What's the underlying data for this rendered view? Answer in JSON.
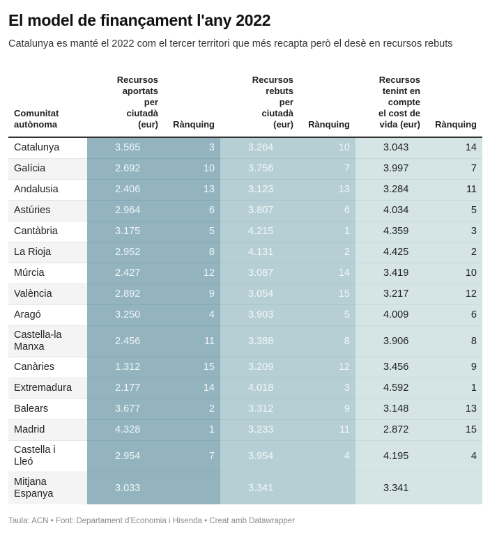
{
  "title": "El model de finançament l'any 2022",
  "subtitle": "Catalunya es manté el 2022 com el tercer territori que més recapta però el desè en recursos rebuts",
  "table": {
    "headers": [
      "Comunitat autònoma",
      "Recursos aportats per ciutadà (eur)",
      "Rànquing",
      "Recursos rebuts per ciutadà (eur)",
      "Rànquing",
      "Recursos tenint en compte el cost de vida (eur)",
      "Rànquing"
    ],
    "header_lines": [
      [
        "Comunitat",
        "autònoma"
      ],
      [
        "Recursos",
        "aportats",
        "per",
        "ciutadà",
        "(eur)"
      ],
      [
        "Rànquing"
      ],
      [
        "Recursos",
        "rebuts",
        "per",
        "ciutadà",
        "(eur)"
      ],
      [
        "Rànquing"
      ],
      [
        "Recursos",
        "tenint en",
        "compte",
        "el cost de",
        "vida (eur)"
      ],
      [
        "Rànquing"
      ]
    ],
    "rows": [
      {
        "name": "Catalunya",
        "aportats": "3.565",
        "rank_aportats": "3",
        "rebuts": "3.264",
        "rank_rebuts": "10",
        "cost_vida": "3.043",
        "rank_cost_vida": "14"
      },
      {
        "name": "Galícia",
        "aportats": "2.692",
        "rank_aportats": "10",
        "rebuts": "3.756",
        "rank_rebuts": "7",
        "cost_vida": "3.997",
        "rank_cost_vida": "7"
      },
      {
        "name": "Andalusia",
        "aportats": "2.406",
        "rank_aportats": "13",
        "rebuts": "3.123",
        "rank_rebuts": "13",
        "cost_vida": "3.284",
        "rank_cost_vida": "11"
      },
      {
        "name": "Astúries",
        "aportats": "2.964",
        "rank_aportats": "6",
        "rebuts": "3.807",
        "rank_rebuts": "6",
        "cost_vida": "4.034",
        "rank_cost_vida": "5"
      },
      {
        "name": "Cantàbria",
        "aportats": "3.175",
        "rank_aportats": "5",
        "rebuts": "4.215",
        "rank_rebuts": "1",
        "cost_vida": "4.359",
        "rank_cost_vida": "3"
      },
      {
        "name": "La Rioja",
        "aportats": "2.952",
        "rank_aportats": "8",
        "rebuts": "4.131",
        "rank_rebuts": "2",
        "cost_vida": "4.425",
        "rank_cost_vida": "2"
      },
      {
        "name": "Múrcia",
        "aportats": "2.427",
        "rank_aportats": "12",
        "rebuts": "3.087",
        "rank_rebuts": "14",
        "cost_vida": "3.419",
        "rank_cost_vida": "10"
      },
      {
        "name": "València",
        "aportats": "2.892",
        "rank_aportats": "9",
        "rebuts": "3.054",
        "rank_rebuts": "15",
        "cost_vida": "3.217",
        "rank_cost_vida": "12"
      },
      {
        "name": "Aragó",
        "aportats": "3.250",
        "rank_aportats": "4",
        "rebuts": "3.903",
        "rank_rebuts": "5",
        "cost_vida": "4.009",
        "rank_cost_vida": "6"
      },
      {
        "name": "Castella-la Manxa",
        "name_lines": [
          "Castella-la",
          "Manxa"
        ],
        "aportats": "2.456",
        "rank_aportats": "11",
        "rebuts": "3.388",
        "rank_rebuts": "8",
        "cost_vida": "3.906",
        "rank_cost_vida": "8"
      },
      {
        "name": "Canàries",
        "aportats": "1.312",
        "rank_aportats": "15",
        "rebuts": "3.209",
        "rank_rebuts": "12",
        "cost_vida": "3.456",
        "rank_cost_vida": "9"
      },
      {
        "name": "Extremadura",
        "aportats": "2.177",
        "rank_aportats": "14",
        "rebuts": "4.018",
        "rank_rebuts": "3",
        "cost_vida": "4.592",
        "rank_cost_vida": "1"
      },
      {
        "name": "Balears",
        "aportats": "3.677",
        "rank_aportats": "2",
        "rebuts": "3.312",
        "rank_rebuts": "9",
        "cost_vida": "3.148",
        "rank_cost_vida": "13"
      },
      {
        "name": "Madrid",
        "aportats": "4.328",
        "rank_aportats": "1",
        "rebuts": "3.233",
        "rank_rebuts": "11",
        "cost_vida": "2.872",
        "rank_cost_vida": "15"
      },
      {
        "name": "Castella i Lleó",
        "name_lines": [
          "Castella i",
          "Lleó"
        ],
        "aportats": "2.954",
        "rank_aportats": "7",
        "rebuts": "3.954",
        "rank_rebuts": "4",
        "cost_vida": "4.195",
        "rank_cost_vida": "4"
      },
      {
        "name": "Mitjana Espanya",
        "name_lines": [
          "Mitjana",
          "Espanya"
        ],
        "aportats": "3.033",
        "rank_aportats": "",
        "rebuts": "3.341",
        "rank_rebuts": "",
        "cost_vida": "3.341",
        "rank_cost_vida": ""
      }
    ]
  },
  "colors": {
    "col_aportats": "#93b4bf",
    "col_rebuts": "#b6cfd4",
    "col_cost_vida": "#d5e5e6"
  },
  "footer": "Taula: ACN • Font: Departament d'Economia i Hisenda • Creat amb Datawrapper"
}
